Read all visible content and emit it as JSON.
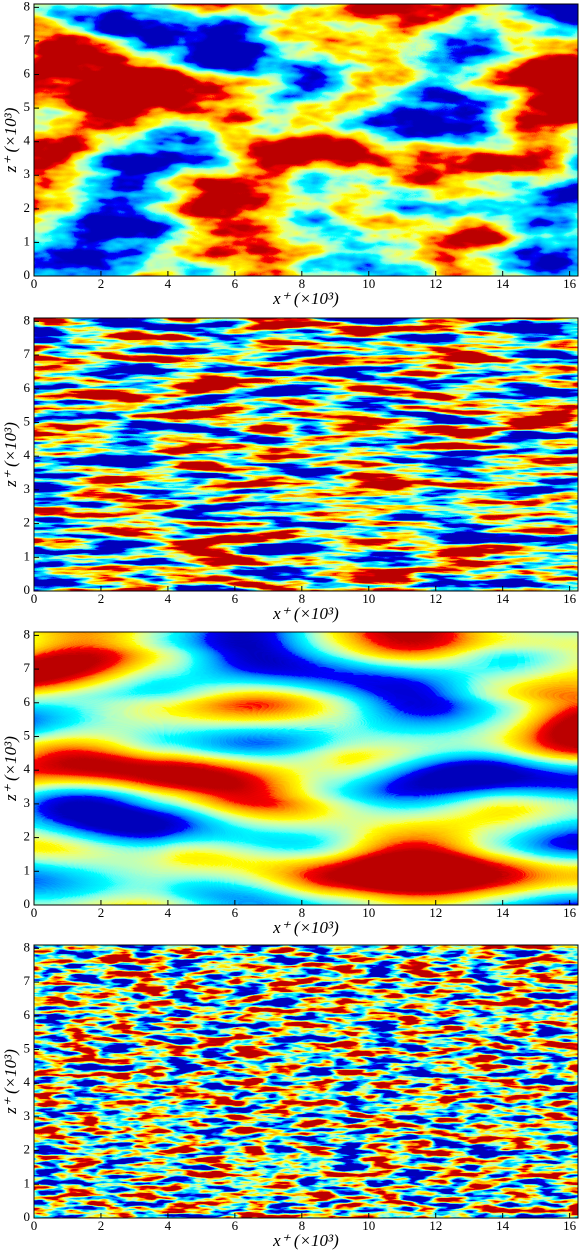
{
  "chart_data": [
    {
      "type": "heatmap",
      "xlabel": "x⁺ (×10³)",
      "ylabel": "z⁺ (×10³)",
      "colormap": "jet",
      "xlim": [
        0,
        16.25
      ],
      "ylim": [
        0,
        8.1
      ],
      "xticks": [
        0,
        2,
        4,
        6,
        8,
        10,
        12,
        14,
        16
      ],
      "yticks": [
        0,
        1,
        2,
        3,
        4,
        5,
        6,
        7,
        8
      ]
    },
    {
      "type": "heatmap",
      "xlabel": "x⁺ (×10³)",
      "ylabel": "z⁺ (×10³)",
      "colormap": "jet",
      "xlim": [
        0,
        16.25
      ],
      "ylim": [
        0,
        8.1
      ],
      "xticks": [
        0,
        2,
        4,
        6,
        8,
        10,
        12,
        14,
        16
      ],
      "yticks": [
        0,
        1,
        2,
        3,
        4,
        5,
        6,
        7,
        8
      ]
    },
    {
      "type": "heatmap",
      "xlabel": "x⁺ (×10³)",
      "ylabel": "z⁺ (×10³)",
      "colormap": "jet",
      "xlim": [
        0,
        16.25
      ],
      "ylim": [
        0,
        8.1
      ],
      "xticks": [
        0,
        2,
        4,
        6,
        8,
        10,
        12,
        14,
        16
      ],
      "yticks": [
        0,
        1,
        2,
        3,
        4,
        5,
        6,
        7,
        8
      ]
    },
    {
      "type": "heatmap",
      "xlabel": "x⁺ (×10³)",
      "ylabel": "z⁺ (×10³)",
      "colormap": "jet",
      "xlim": [
        0,
        16.25
      ],
      "ylim": [
        0,
        8.1
      ],
      "xticks": [
        0,
        2,
        4,
        6,
        8,
        10,
        12,
        14,
        16
      ],
      "yticks": [
        0,
        1,
        2,
        3,
        4,
        5,
        6,
        7,
        8
      ]
    }
  ]
}
